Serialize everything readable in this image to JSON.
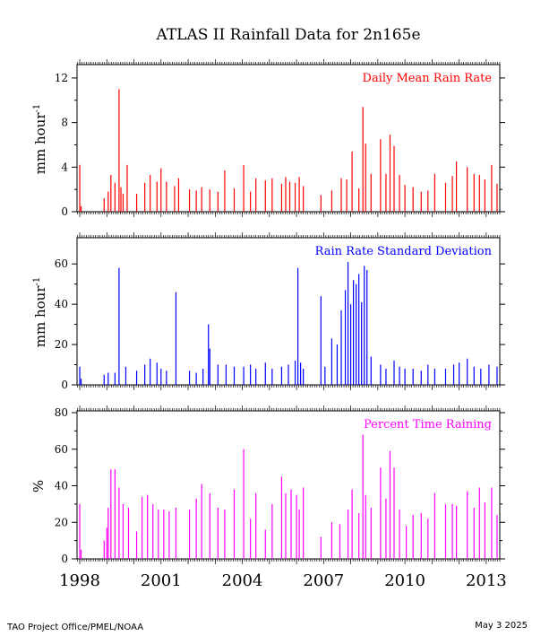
{
  "title": "ATLAS II Rainfall Data for 2n165e",
  "footer": {
    "left": "TAO Project Office/PMEL/NOAA",
    "right": "May  3 2025"
  },
  "x_axis": {
    "labels": [
      "1998",
      "2001",
      "2004",
      "2007",
      "2010",
      "2013"
    ],
    "positions": [
      1998,
      2001,
      2004,
      2007,
      2010,
      2013
    ],
    "range": [
      1997.9,
      2013.5
    ]
  },
  "chart_data": [
    {
      "type": "bar",
      "title": "Daily Mean Rain Rate",
      "color": "#ff0000",
      "ylabel": "mm hour",
      "ylabel_sup": "-1",
      "ylim": [
        0,
        13.2
      ],
      "yticks": [
        0,
        4,
        8,
        12
      ],
      "ytick_labels": [
        "0",
        "4",
        "8",
        "12"
      ],
      "x": [
        1998.0,
        1998.05,
        1998.9,
        1999.05,
        1999.15,
        1999.3,
        1999.45,
        1999.52,
        1999.6,
        1999.75,
        2000.1,
        2000.4,
        2000.6,
        2000.85,
        2001.0,
        2001.2,
        2001.5,
        2001.65,
        2002.05,
        2002.3,
        2002.5,
        2002.8,
        2003.1,
        2003.35,
        2003.7,
        2004.05,
        2004.3,
        2004.5,
        2004.85,
        2005.1,
        2005.45,
        2005.6,
        2005.75,
        2005.95,
        2006.1,
        2006.25,
        2006.9,
        2007.3,
        2007.65,
        2007.85,
        2008.05,
        2008.3,
        2008.45,
        2008.55,
        2008.75,
        2009.1,
        2009.3,
        2009.45,
        2009.6,
        2009.8,
        2010.0,
        2010.3,
        2010.6,
        2010.85,
        2011.1,
        2011.5,
        2011.75,
        2011.9,
        2012.3,
        2012.55,
        2012.75,
        2012.95,
        2013.2,
        2013.4
      ],
      "values": [
        4.2,
        0.5,
        1.2,
        1.8,
        3.3,
        2.6,
        11.0,
        2.2,
        1.6,
        4.2,
        1.6,
        2.6,
        3.3,
        2.7,
        3.9,
        2.7,
        2.3,
        3.0,
        2.0,
        1.9,
        2.2,
        2.0,
        1.8,
        3.7,
        2.1,
        4.2,
        1.8,
        3.0,
        2.8,
        3.0,
        2.5,
        3.1,
        2.7,
        2.6,
        3.1,
        2.3,
        1.5,
        1.9,
        3.0,
        2.9,
        5.4,
        2.1,
        9.4,
        6.1,
        3.4,
        6.5,
        3.4,
        6.9,
        5.9,
        3.3,
        2.4,
        2.2,
        1.8,
        1.9,
        3.4,
        2.6,
        3.2,
        4.5,
        4.0,
        3.4,
        3.3,
        2.9,
        4.2,
        2.5
      ]
    },
    {
      "type": "bar",
      "title": "Rain Rate Standard Deviation",
      "color": "#0000ff",
      "ylabel": "mm hour",
      "ylabel_sup": "-1",
      "ylim": [
        0,
        73
      ],
      "yticks": [
        0,
        20,
        40,
        60
      ],
      "ytick_labels": [
        "0",
        "20",
        "40",
        "60"
      ],
      "x": [
        1998.0,
        1998.05,
        1998.9,
        1999.05,
        1999.3,
        1999.45,
        1999.7,
        2000.1,
        2000.4,
        2000.6,
        2000.85,
        2001.0,
        2001.2,
        2001.55,
        2002.05,
        2002.3,
        2002.55,
        2002.75,
        2002.8,
        2003.1,
        2003.4,
        2003.7,
        2004.05,
        2004.3,
        2004.5,
        2004.85,
        2005.1,
        2005.45,
        2005.7,
        2005.95,
        2006.05,
        2006.15,
        2006.25,
        2006.9,
        2007.05,
        2007.3,
        2007.5,
        2007.65,
        2007.8,
        2007.9,
        2008.0,
        2008.1,
        2008.2,
        2008.3,
        2008.4,
        2008.5,
        2008.6,
        2008.75,
        2009.1,
        2009.3,
        2009.6,
        2009.8,
        2010.0,
        2010.3,
        2010.6,
        2010.85,
        2011.1,
        2011.5,
        2011.8,
        2012.0,
        2012.3,
        2012.55,
        2012.8,
        2013.1,
        2013.4
      ],
      "values": [
        9,
        3,
        5,
        6,
        6,
        58,
        9,
        7,
        10,
        13,
        11,
        8,
        7,
        46,
        7,
        6,
        8,
        30,
        18,
        10,
        10,
        9,
        9,
        10,
        8,
        11,
        8,
        9,
        10,
        12,
        58,
        11,
        8,
        44,
        9,
        23,
        20,
        37,
        47,
        61,
        40,
        52,
        50,
        55,
        41,
        59,
        57,
        14,
        10,
        8,
        12,
        9,
        8,
        8,
        7,
        10,
        8,
        8,
        10,
        11,
        13,
        9,
        8,
        10,
        9
      ]
    },
    {
      "type": "bar",
      "title": "Percent Time Raining",
      "color": "#ff00ff",
      "ylabel": "%",
      "ylim": [
        0,
        81
      ],
      "yticks": [
        0,
        20,
        40,
        60,
        80
      ],
      "ytick_labels": [
        "0",
        "20",
        "40",
        "60",
        "80"
      ],
      "x": [
        1998.0,
        1998.05,
        1998.9,
        1999.0,
        1999.05,
        1999.15,
        1999.3,
        1999.45,
        1999.6,
        1999.8,
        2000.1,
        2000.3,
        2000.5,
        2000.7,
        2000.9,
        2001.1,
        2001.3,
        2001.55,
        2002.05,
        2002.3,
        2002.5,
        2002.8,
        2003.1,
        2003.35,
        2003.7,
        2004.05,
        2004.3,
        2004.5,
        2004.85,
        2005.1,
        2005.45,
        2005.6,
        2005.8,
        2006.0,
        2006.1,
        2006.25,
        2006.9,
        2007.3,
        2007.6,
        2007.9,
        2008.05,
        2008.3,
        2008.45,
        2008.55,
        2008.75,
        2009.1,
        2009.3,
        2009.45,
        2009.6,
        2009.8,
        2010.05,
        2010.3,
        2010.6,
        2010.85,
        2011.1,
        2011.5,
        2011.75,
        2011.9,
        2012.3,
        2012.55,
        2012.75,
        2012.95,
        2013.2,
        2013.4
      ],
      "values": [
        30,
        5,
        10,
        17,
        28,
        49,
        49,
        39,
        30,
        28,
        15,
        34,
        35,
        30,
        27,
        27,
        26,
        28,
        27,
        33,
        41,
        36,
        28,
        27,
        38,
        60,
        22,
        36,
        16,
        30,
        45,
        36,
        38,
        35,
        27,
        39,
        12,
        20,
        19,
        27,
        38,
        25,
        68,
        35,
        28,
        50,
        33,
        59,
        50,
        27,
        18,
        24,
        25,
        22,
        36,
        30,
        30,
        29,
        37,
        28,
        39,
        31,
        39,
        24
      ]
    }
  ]
}
